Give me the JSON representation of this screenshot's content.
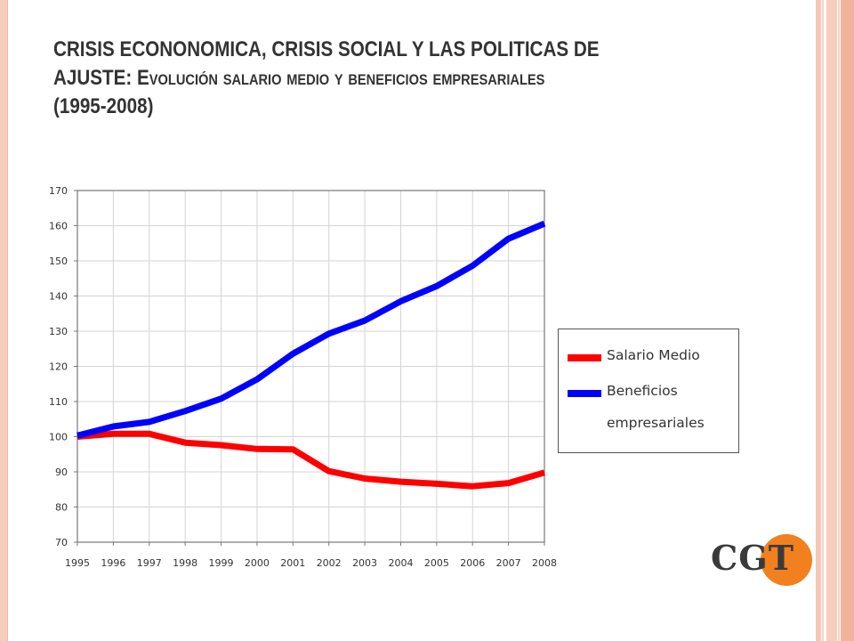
{
  "slide": {
    "title_line1": "CRISIS ECONONOMICA, CRISIS SOCIAL Y LAS POLITICAS DE",
    "title_line2_main": "AJUSTE: E",
    "title_line2_sc": "volución salario medio y beneficios empresariales",
    "title_line3": "(1995-2008)"
  },
  "colors": {
    "accent": "#f2801f",
    "frame": "#f7cdbd",
    "salario": "#ff0000",
    "beneficios": "#0000ff"
  },
  "logo": {
    "text": "CGT"
  },
  "chart_data": {
    "type": "line",
    "title": "Evolución salario medio y beneficios empresariales (1995-2008)",
    "xlabel": "",
    "ylabel": "",
    "x": [
      "1995",
      "1996",
      "1997",
      "1998",
      "1999",
      "2000",
      "2001",
      "2002",
      "2003",
      "2004",
      "2005",
      "2006",
      "2007",
      "2008"
    ],
    "ylim": [
      70,
      170
    ],
    "yticks": [
      70,
      80,
      90,
      100,
      110,
      120,
      130,
      140,
      150,
      160,
      170
    ],
    "grid": true,
    "legend_position": "right",
    "series": [
      {
        "name": "Salario Medio",
        "color": "#ff0000",
        "values": [
          100,
          100.8,
          100.8,
          98.3,
          97.6,
          96.5,
          96.4,
          90.2,
          88.1,
          87.2,
          86.6,
          85.9,
          86.8,
          89.8
        ]
      },
      {
        "name": "Beneficios empresariales",
        "label_line1": "Beneficios",
        "label_line2": "empresariales",
        "color": "#0000ff",
        "values": [
          100.3,
          102.9,
          104.2,
          107.3,
          110.8,
          116.3,
          123.6,
          129.3,
          133.0,
          138.5,
          142.8,
          148.6,
          156.3,
          160.6
        ]
      }
    ]
  }
}
